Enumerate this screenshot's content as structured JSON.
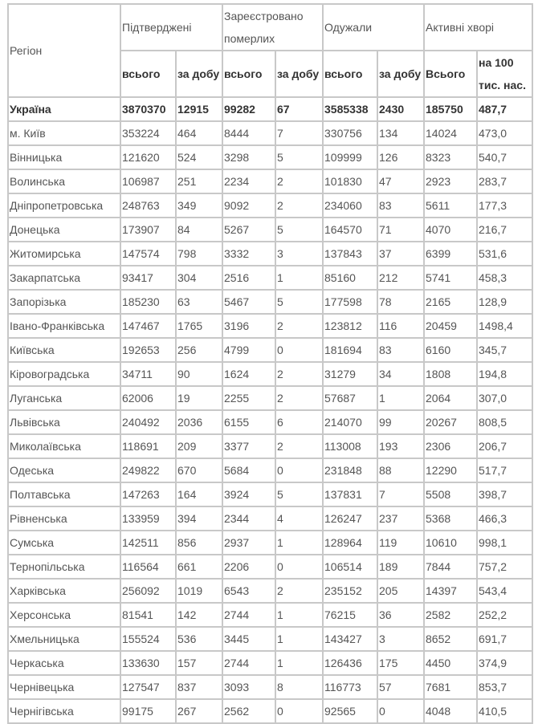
{
  "header": {
    "region": "Регіон",
    "groups": [
      "Підтверджені",
      "Зареєстровано померлих",
      "Одужали",
      "Активні хворі"
    ],
    "sub": [
      "всього",
      "за добу",
      "всього",
      "за добу",
      "всього",
      "за добу",
      "Всього",
      "на 100 тис. нас."
    ]
  },
  "total": [
    "Україна",
    "3870370",
    "12915",
    "99282",
    "67",
    "3585338",
    "2430",
    "185750",
    "487,7"
  ],
  "rows": [
    [
      "м. Київ",
      "353224",
      "464",
      "8444",
      "7",
      "330756",
      "134",
      "14024",
      "473,0"
    ],
    [
      "Вінницька",
      "121620",
      "524",
      "3298",
      "5",
      "109999",
      "126",
      "8323",
      "540,7"
    ],
    [
      "Волинська",
      "106987",
      "251",
      "2234",
      "2",
      "101830",
      "47",
      "2923",
      "283,7"
    ],
    [
      "Дніпропетровська",
      "248763",
      "349",
      "9092",
      "2",
      "234060",
      "83",
      "5611",
      "177,3"
    ],
    [
      "Донецька",
      "173907",
      "84",
      "5267",
      "5",
      "164570",
      "71",
      "4070",
      "216,7"
    ],
    [
      "Житомирська",
      "147574",
      "798",
      "3332",
      "3",
      "137843",
      "37",
      "6399",
      "531,6"
    ],
    [
      "Закарпатська",
      "93417",
      "304",
      "2516",
      "1",
      "85160",
      "212",
      "5741",
      "458,3"
    ],
    [
      "Запорізька",
      "185230",
      "63",
      "5467",
      "5",
      "177598",
      "78",
      "2165",
      "128,9"
    ],
    [
      "Івано-Франківська",
      "147467",
      "1765",
      "3196",
      "2",
      "123812",
      "116",
      "20459",
      "1498,4"
    ],
    [
      "Київська",
      "192653",
      "256",
      "4799",
      "0",
      "181694",
      "83",
      "6160",
      "345,7"
    ],
    [
      "Кіровоградська",
      "34711",
      "90",
      "1624",
      "2",
      "31279",
      "34",
      "1808",
      "194,8"
    ],
    [
      "Луганська",
      "62006",
      "19",
      "2255",
      "2",
      "57687",
      "1",
      "2064",
      "307,0"
    ],
    [
      "Львівська",
      "240492",
      "2036",
      "6155",
      "6",
      "214070",
      "99",
      "20267",
      "808,5"
    ],
    [
      "Миколаївська",
      "118691",
      "209",
      "3377",
      "2",
      "113008",
      "193",
      "2306",
      "206,7"
    ],
    [
      "Одеська",
      "249822",
      "670",
      "5684",
      "0",
      "231848",
      "88",
      "12290",
      "517,7"
    ],
    [
      "Полтавська",
      "147263",
      "164",
      "3924",
      "5",
      "137831",
      "7",
      "5508",
      "398,7"
    ],
    [
      "Рівненська",
      "133959",
      "394",
      "2344",
      "4",
      "126247",
      "237",
      "5368",
      "466,3"
    ],
    [
      "Сумська",
      "142511",
      "856",
      "2937",
      "1",
      "128964",
      "119",
      "10610",
      "998,1"
    ],
    [
      "Тернопільська",
      "116564",
      "661",
      "2206",
      "0",
      "106514",
      "189",
      "7844",
      "757,2"
    ],
    [
      "Харківська",
      "256092",
      "1019",
      "6543",
      "2",
      "235152",
      "205",
      "14397",
      "543,4"
    ],
    [
      "Херсонська",
      "81541",
      "142",
      "2744",
      "1",
      "76215",
      "36",
      "2582",
      "252,2"
    ],
    [
      "Хмельницька",
      "155524",
      "536",
      "3445",
      "1",
      "143427",
      "3",
      "8652",
      "691,7"
    ],
    [
      "Черкаська",
      "133630",
      "157",
      "2744",
      "1",
      "126436",
      "175",
      "4450",
      "374,9"
    ],
    [
      "Чернівецька",
      "127547",
      "837",
      "3093",
      "8",
      "116773",
      "57",
      "7681",
      "853,7"
    ],
    [
      "Чернігівська",
      "99175",
      "267",
      "2562",
      "0",
      "92565",
      "0",
      "4048",
      "410,5"
    ]
  ]
}
